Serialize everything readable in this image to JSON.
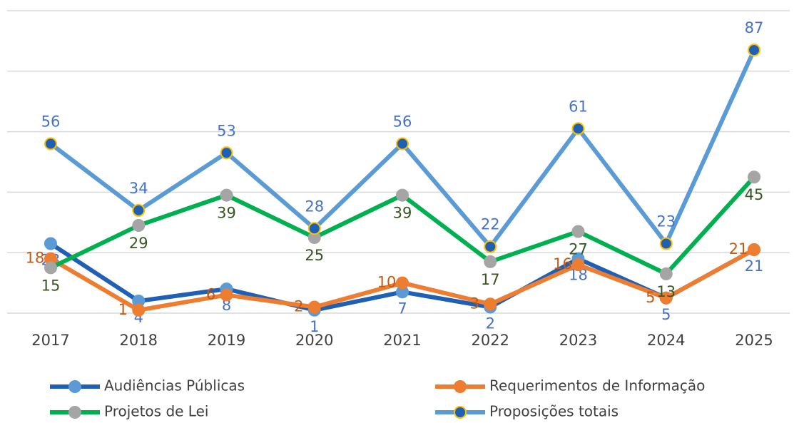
{
  "chart_data": {
    "type": "line",
    "categories": [
      "2017",
      "2018",
      "2019",
      "2020",
      "2021",
      "2022",
      "2023",
      "2024",
      "2025"
    ],
    "series": [
      {
        "name": "Audiências Públicas",
        "color": "#1f5fb4",
        "marker_color": "#5b9bd5",
        "label_color": "#4472c4",
        "values": [
          23,
          4,
          8,
          1,
          7,
          2,
          18,
          5,
          21
        ]
      },
      {
        "name": "Requerimentos de Informação",
        "color": "#ed7d31",
        "marker_color": "#ed7d31",
        "label_color": "#c55a11",
        "values": [
          18,
          1,
          6,
          2,
          10,
          3,
          16,
          5,
          21
        ]
      },
      {
        "name": "Projetos de Lei",
        "color": "#00b050",
        "marker_color": "#a5a5a5",
        "label_color": "#375623",
        "values": [
          15,
          29,
          39,
          25,
          39,
          17,
          27,
          13,
          45
        ]
      },
      {
        "name": "Proposições totais",
        "color": "#5b9bd5",
        "marker_color": "#1f5fb4",
        "marker_edge": "#ffc000",
        "label_color": "#4472c4",
        "values": [
          56,
          34,
          53,
          28,
          56,
          22,
          61,
          23,
          87
        ]
      }
    ],
    "ylim": [
      0,
      100
    ],
    "yticks": [
      0,
      20,
      40,
      60,
      80,
      100
    ],
    "grid": true,
    "legend": "bottom"
  }
}
